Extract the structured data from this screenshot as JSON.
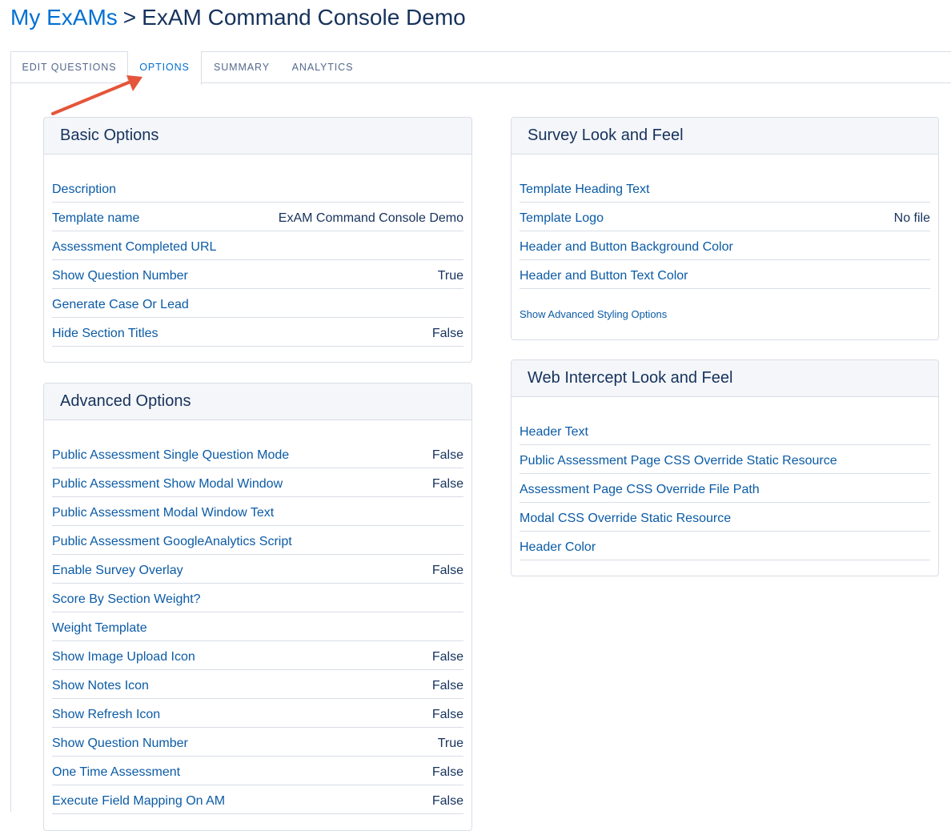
{
  "breadcrumb": {
    "parent": "My ExAMs",
    "separator": ">",
    "current": "ExAM Command Console Demo"
  },
  "tabs": [
    {
      "label": "EDIT QUESTIONS",
      "active": false
    },
    {
      "label": "OPTIONS",
      "active": true
    },
    {
      "label": "SUMMARY",
      "active": false
    },
    {
      "label": "ANALYTICS",
      "active": false
    }
  ],
  "basic_options": {
    "title": "Basic Options",
    "rows": [
      {
        "label": "Description",
        "value": ""
      },
      {
        "label": "Template name",
        "value": "ExAM Command Console Demo"
      },
      {
        "label": "Assessment Completed URL",
        "value": ""
      },
      {
        "label": "Show Question Number",
        "value": "True"
      },
      {
        "label": "Generate Case Or Lead",
        "value": ""
      },
      {
        "label": "Hide Section Titles",
        "value": "False"
      }
    ]
  },
  "advanced_options": {
    "title": "Advanced Options",
    "rows": [
      {
        "label": "Public Assessment Single Question Mode",
        "value": "False"
      },
      {
        "label": "Public Assessment Show Modal Window",
        "value": "False"
      },
      {
        "label": "Public Assessment Modal Window Text",
        "value": ""
      },
      {
        "label": "Public Assessment GoogleAnalytics Script",
        "value": ""
      },
      {
        "label": "Enable Survey Overlay",
        "value": "False"
      },
      {
        "label": "Score By Section Weight?",
        "value": ""
      },
      {
        "label": "Weight Template",
        "value": ""
      },
      {
        "label": "Show Image Upload Icon",
        "value": "False"
      },
      {
        "label": "Show Notes Icon",
        "value": "False"
      },
      {
        "label": "Show Refresh Icon",
        "value": "False"
      },
      {
        "label": "Show Question Number",
        "value": "True"
      },
      {
        "label": "One Time Assessment",
        "value": "False"
      },
      {
        "label": "Execute Field Mapping On AM",
        "value": "False"
      }
    ]
  },
  "survey_look": {
    "title": "Survey Look and Feel",
    "rows": [
      {
        "label": "Template Heading Text",
        "value": ""
      },
      {
        "label": "Template Logo",
        "value": "No file"
      },
      {
        "label": "Header and Button Background Color",
        "value": ""
      },
      {
        "label": "Header and Button Text Color",
        "value": ""
      }
    ],
    "advanced_link": "Show Advanced Styling Options"
  },
  "web_intercept": {
    "title": "Web Intercept Look and Feel",
    "rows": [
      {
        "label": "Header Text",
        "value": ""
      },
      {
        "label": "Public Assessment Page CSS Override Static Resource",
        "value": ""
      },
      {
        "label": "Assessment Page CSS Override File Path",
        "value": ""
      },
      {
        "label": "Modal CSS Override Static Resource",
        "value": ""
      },
      {
        "label": "Header Color",
        "value": ""
      }
    ]
  },
  "colors": {
    "link": "#0b5ba6",
    "text": "#16325c",
    "active_tab": "#0070d2",
    "border": "#d8dde6",
    "header_bg": "#f4f6f9",
    "annotation_arrow": "#e5553a"
  }
}
